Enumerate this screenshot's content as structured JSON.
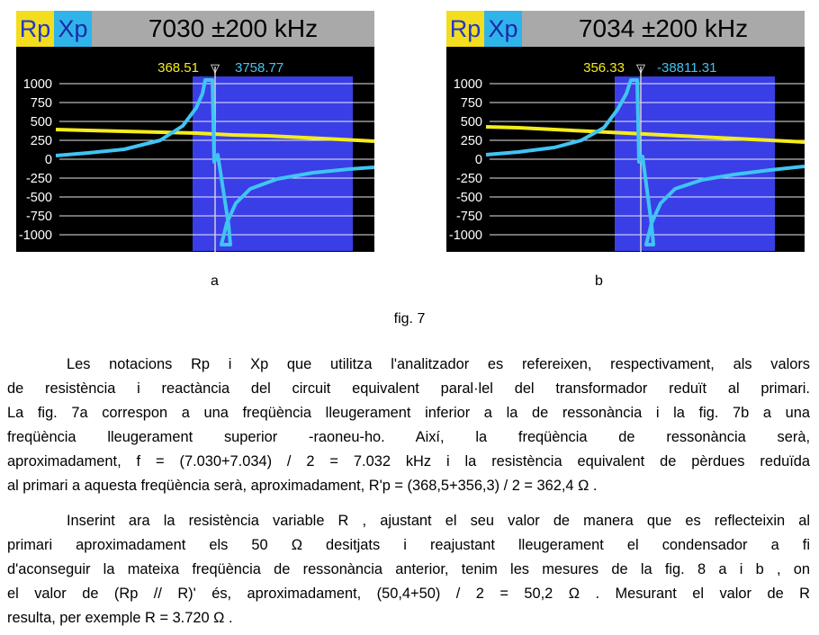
{
  "figure_a": {
    "tab_rp": "Rp",
    "tab_xp": "Xp",
    "frequency_label": "7030 ±200 kHz",
    "marker_symbol": "▽",
    "readout_rp": "368.51",
    "readout_xp": "3758.77",
    "y_tick_labels": [
      "1000",
      "750",
      "500",
      "250",
      "0",
      "-250",
      "-500",
      "-750",
      "-1000"
    ],
    "colors": {
      "rp": "#f5ec1c",
      "xp": "#40c4f4",
      "band": "#3a3ee6",
      "background": "#000000"
    }
  },
  "figure_b": {
    "tab_rp": "Rp",
    "tab_xp": "Xp",
    "frequency_label": "7034 ±200 kHz",
    "marker_symbol": "▽",
    "readout_rp": "356.33",
    "readout_xp": "-38811.31",
    "y_tick_labels": [
      "1000",
      "750",
      "500",
      "250",
      "0",
      "-250",
      "-500",
      "-750",
      "-1000"
    ],
    "colors": {
      "rp": "#f5ec1c",
      "xp": "#40c4f4",
      "band": "#3a3ee6",
      "background": "#000000"
    }
  },
  "subcaption_a": "a",
  "subcaption_b": "b",
  "figure_caption": "fig. 7",
  "paragraph_1": [
    "Les notacions Rp i Xp que utilitza l'analitzador es refereixen, respectivament, als valors",
    "de resistència i reactància del circuit equivalent paral·lel del transformador reduït al primari.",
    "La fig. 7a correspon a una freqüència lleugerament inferior a la de ressonància i la fig. 7b a una",
    "freqüència lleugerament superior -raoneu-ho. Així, la freqüència de ressonància serà,",
    "aproximadament, f = (7.030+7.034) / 2 = 7.032 kHz i la resistència equivalent de pèrdues reduïda",
    "al primari a aquesta freqüència serà, aproximadament, R'p = (368,5+356,3) / 2 = 362,4 Ω ."
  ],
  "paragraph_2": [
    "Inserint ara la resistència variable R , ajustant el seu valor de manera que es reflecteixin al",
    "primari aproximadament els 50 Ω desitjats i reajustant lleugerament el condensador a fi",
    "d'aconseguir la mateixa freqüència de ressonància anterior, tenim les mesures de la fig. 8 a i b , on",
    "el valor de (Rp // R)' és, aproximadament, (50,4+50) / 2 = 50,2 Ω . Mesurant el valor de R",
    "resulta, per exemple R = 3.720 Ω ."
  ]
}
